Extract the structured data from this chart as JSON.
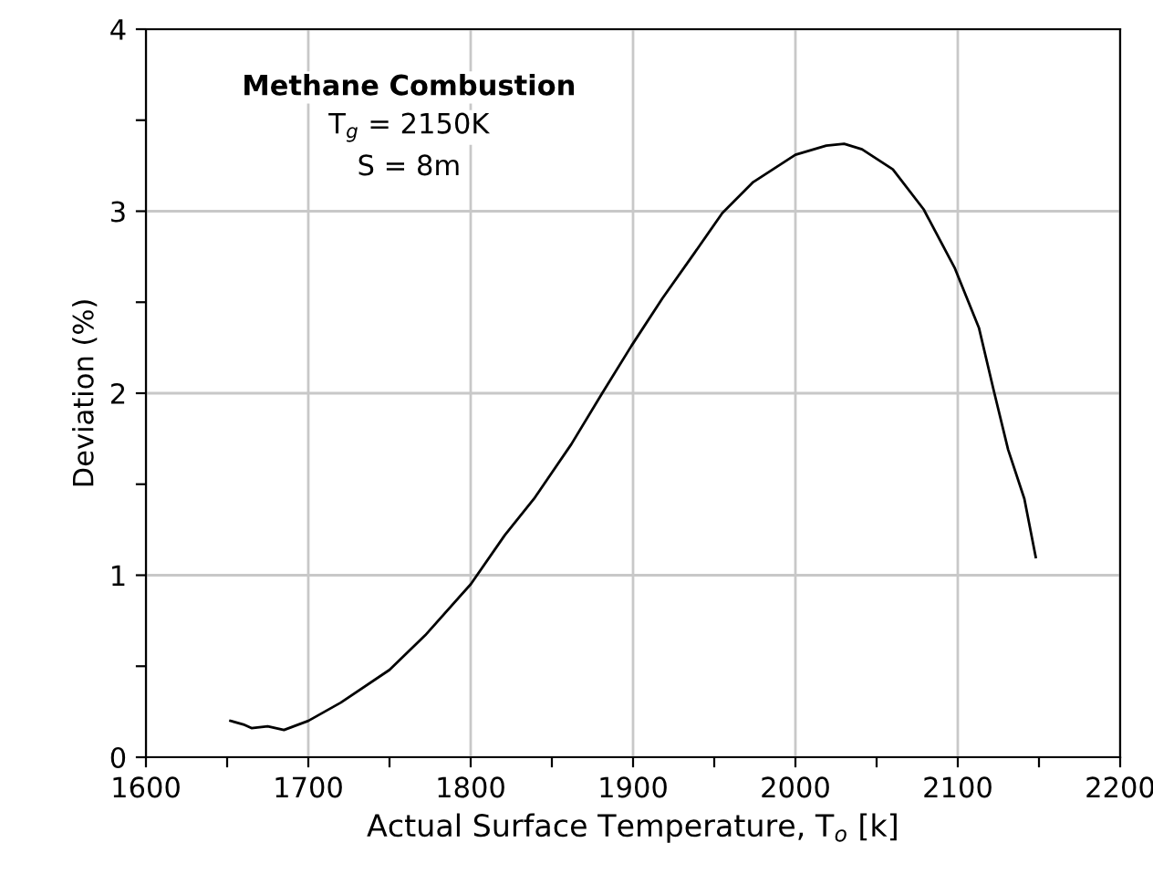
{
  "chart_data": {
    "type": "line",
    "xlabel": "Actual Surface Temperature, T$_{o}$ [k]",
    "ylabel": "Deviation (%)",
    "annotations": [
      "Methane Combustion",
      "T$_{g}$ = 2150K",
      "S = 8m"
    ],
    "x": [
      1652,
      1660,
      1665,
      1675,
      1685,
      1700,
      1720,
      1750,
      1772,
      1800,
      1821,
      1839,
      1862,
      1881,
      1899,
      1918,
      1937,
      1955,
      1974,
      2000,
      2019,
      2030,
      2041,
      2060,
      2079,
      2098,
      2113,
      2122,
      2131,
      2141,
      2148
    ],
    "series": [
      {
        "color": "#000000",
        "values": [
          0.2,
          0.18,
          0.16,
          0.17,
          0.15,
          0.2,
          0.3,
          0.48,
          0.67,
          0.95,
          1.22,
          1.42,
          1.72,
          2.0,
          2.26,
          2.52,
          2.76,
          2.99,
          3.16,
          3.31,
          3.36,
          3.37,
          3.34,
          3.23,
          3.01,
          2.69,
          2.36,
          2.02,
          1.69,
          1.42,
          1.1
        ]
      }
    ],
    "xlim": [
      1600,
      2200
    ],
    "ylim": [
      0,
      4
    ],
    "xticks": [
      1600,
      {
        "value": 1650,
        "label": null
      },
      1700,
      {
        "value": 1750,
        "label": null
      },
      1800,
      {
        "value": 1850,
        "label": null
      },
      1900,
      {
        "value": 1950,
        "label": null
      },
      2000,
      {
        "value": 2050,
        "label": null
      },
      2100,
      {
        "value": 2150,
        "label": null
      },
      2200
    ],
    "yticks": [
      0,
      {
        "value": 0.5,
        "label": null
      },
      1,
      {
        "value": 1.5,
        "label": null
      },
      2,
      {
        "value": 2.5,
        "label": null
      },
      3,
      {
        "value": 3.5,
        "label": null
      },
      4
    ],
    "grid": true,
    "marker": "none",
    "line_style": "solid"
  }
}
